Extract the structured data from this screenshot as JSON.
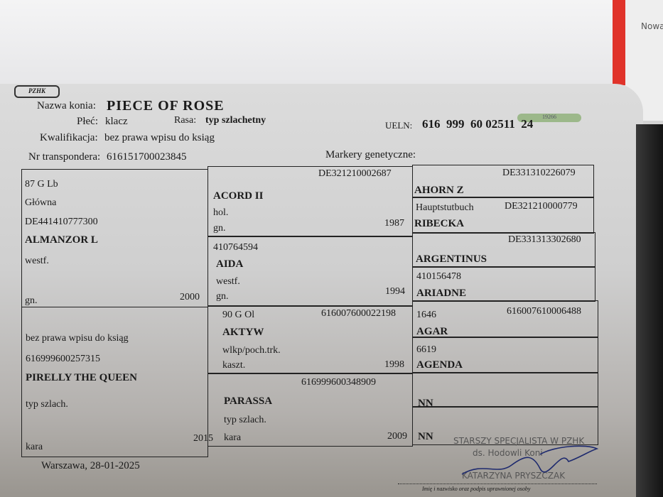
{
  "header": {
    "logo_text": "PZHK",
    "name_label": "Nazwa konia:",
    "name_value": "PIECE OF ROSE",
    "sex_label": "Płeć:",
    "sex_value": "klacz",
    "breed_label": "Rasa:",
    "breed_value": "typ szlachetny",
    "ueln_label": "UELN:",
    "ueln_value": "616  999  60 02511  24",
    "qualification_label": "Kwalifikacja:",
    "qualification_value": "bez prawa wpisu do ksiąg",
    "transponder_label": "Nr transpondera:",
    "transponder_value": "616151700023845",
    "genetic_markers_label": "Markery genetyczne:"
  },
  "pedigree": {
    "sire": {
      "book": "87 G Lb",
      "section": "Główna",
      "id": "DE441410777300",
      "name": "ALMANZOR L",
      "breed": "westf.",
      "color": "gn.",
      "year": "2000"
    },
    "sire_sire": {
      "id": "DE321210002687",
      "name": "ACORD II",
      "breed": "hol.",
      "color": "gn.",
      "year": "1987"
    },
    "sire_sire_sire": {
      "id": "DE331310226079",
      "name": "AHORN Z"
    },
    "sire_sire_dam": {
      "book": "Hauptstutbuch",
      "id": "DE321210000779",
      "name": "RIBECKA"
    },
    "sire_dam": {
      "id": "410764594",
      "name": "AIDA",
      "breed": "westf.",
      "color": "gn.",
      "year": "1994"
    },
    "sire_dam_sire": {
      "id": "DE331313302680",
      "name": "ARGENTINUS"
    },
    "sire_dam_dam": {
      "id": "410156478",
      "name": "ARIADNE"
    },
    "dam": {
      "qualification": "bez prawa wpisu do ksiąg",
      "id": "616999600257315",
      "name": "PIRELLY THE QUEEN",
      "breed": "typ szlach.",
      "color": "kara",
      "year": "2015"
    },
    "dam_sire": {
      "book": "90 G Ol",
      "id": "616007600022198",
      "name": "AKTYW",
      "breed": "wlkp/poch.trk.",
      "color": "kaszt.",
      "year": "1998"
    },
    "dam_sire_sire": {
      "book": "1646",
      "id": "616007610006488",
      "name": "AGAR"
    },
    "dam_sire_dam": {
      "book": "6619",
      "name": "AGENDA"
    },
    "dam_dam": {
      "id": "616999600348909",
      "name": "PARASSA",
      "breed": "typ szlach.",
      "color": "kara",
      "year": "2009"
    },
    "dam_dam_sire": {
      "name": "NN"
    },
    "dam_dam_dam": {
      "name": "NN"
    }
  },
  "footer": {
    "place_date": "Warszawa,  28-01-2025",
    "stamp_line1": "STARSZY SPECJALISTA W PZHK",
    "stamp_line2": "ds. Hodowli Koni",
    "stamp_name": "KATARZYNA PRYSZCZAK",
    "signature_caption": "Imię i nazwisko oraz podpis uprawnionej osoby"
  },
  "background": {
    "sticker_text": "19266",
    "side_note": "Nowa"
  }
}
